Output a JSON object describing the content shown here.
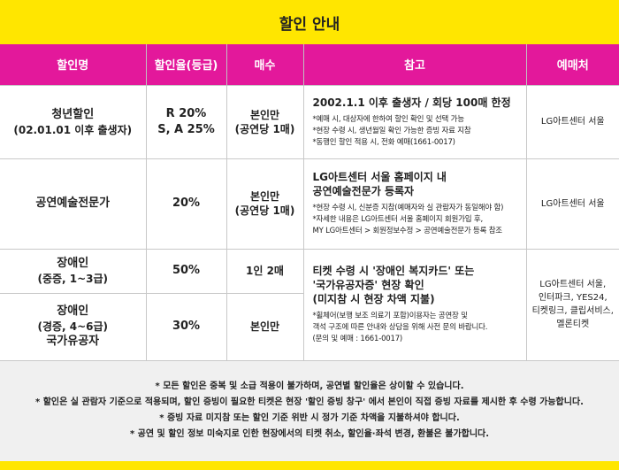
{
  "title": "할인 안내",
  "headers": [
    "할인명",
    "할인율(등급)",
    "매수",
    "참고",
    "예매처"
  ],
  "rows": {
    "youth": {
      "name": [
        "청년할인",
        "(02.01.01 이후 출생자)"
      ],
      "rate": [
        "R 20%",
        "S, A 25%"
      ],
      "qty": [
        "본인만",
        "(공연당 1매)"
      ],
      "note_head": [
        "2002.1.1 이후 출생자 / 회당 100매 한정"
      ],
      "note_lines": [
        "*예매 시, 대상자에 한하여 할인 확인 및 선택 가능",
        "*현장 수령 시, 생년월일 확인 가능한 증빙 자료 지참",
        "*동행인 할인 적용 시, 전화 예매(1661-0017)"
      ],
      "seller": [
        "LG아트센터 서울"
      ]
    },
    "expert": {
      "name": [
        "공연예술전문가"
      ],
      "rate": [
        "20%"
      ],
      "qty": [
        "본인만",
        "(공연당 1매)"
      ],
      "note_head": [
        "LG아트센터 서울 홈페이지 내",
        "공연예술전문가 등록자"
      ],
      "note_lines": [
        "*현장 수령 시, 신분증 지참(예매자와 실 관람자가 동일해야 함)",
        "*자세한 내용은 LG아트센터 서울 홈페이지 회원가입 후,",
        "MY LG아트센터 > 회원정보수정 > 공연예술전문가 등록 참조"
      ],
      "seller": [
        "LG아트센터 서울"
      ]
    },
    "disabled_severe": {
      "name": [
        "장애인",
        "(중증, 1~3급)"
      ],
      "rate": [
        "50%"
      ],
      "qty": [
        "1인 2매"
      ]
    },
    "shared": {
      "note_head": [
        "티켓 수령 시 '장애인 복지카드' 또는",
        "'국가유공자증' 현장 확인",
        "(미지참 시 현장 차액 지불)"
      ],
      "note_lines": [
        "*휠체어(보행 보조 의료기 포함)이용자는 공연장 및",
        " 객석 구조에 따른 안내와 상담을 위해 사전 문의 바랍니다.",
        "(문의 및 예매 : 1661-0017)"
      ],
      "seller": [
        "LG아트센터 서울,",
        "인터파크, YES24,",
        "티켓링크, 클립서비스,",
        "멜론티켓"
      ]
    },
    "disabled_mild": {
      "name": [
        "장애인",
        "(경증, 4~6급)",
        "국가유공자"
      ],
      "rate": [
        "30%"
      ],
      "qty": [
        "본인만"
      ]
    }
  },
  "footer": [
    "* 모든 할인은 중복 및 소급 적용이 불가하며, 공연별 할인율은 상이할 수 있습니다.",
    "* 할인은 실 관람자 기준으로 적용되며, 할인 증빙이 필요한 티켓은 현장 '할인 증빙 창구' 에서 본인이 직접 증빙 자료를 제시한 후 수령 가능합니다.",
    "* 증빙 자료 미지참 또는 할인 기준 위반 시 정가 기준 차액을 지불하셔야 합니다.",
    "* 공연 및 할인 정보 미숙지로 인한 현장에서의 티켓 취소, 할인율·좌석 변경, 환불은 불가합니다."
  ],
  "colors": {
    "title_bar": "#ffe600",
    "header_bar": "#e3189b"
  }
}
